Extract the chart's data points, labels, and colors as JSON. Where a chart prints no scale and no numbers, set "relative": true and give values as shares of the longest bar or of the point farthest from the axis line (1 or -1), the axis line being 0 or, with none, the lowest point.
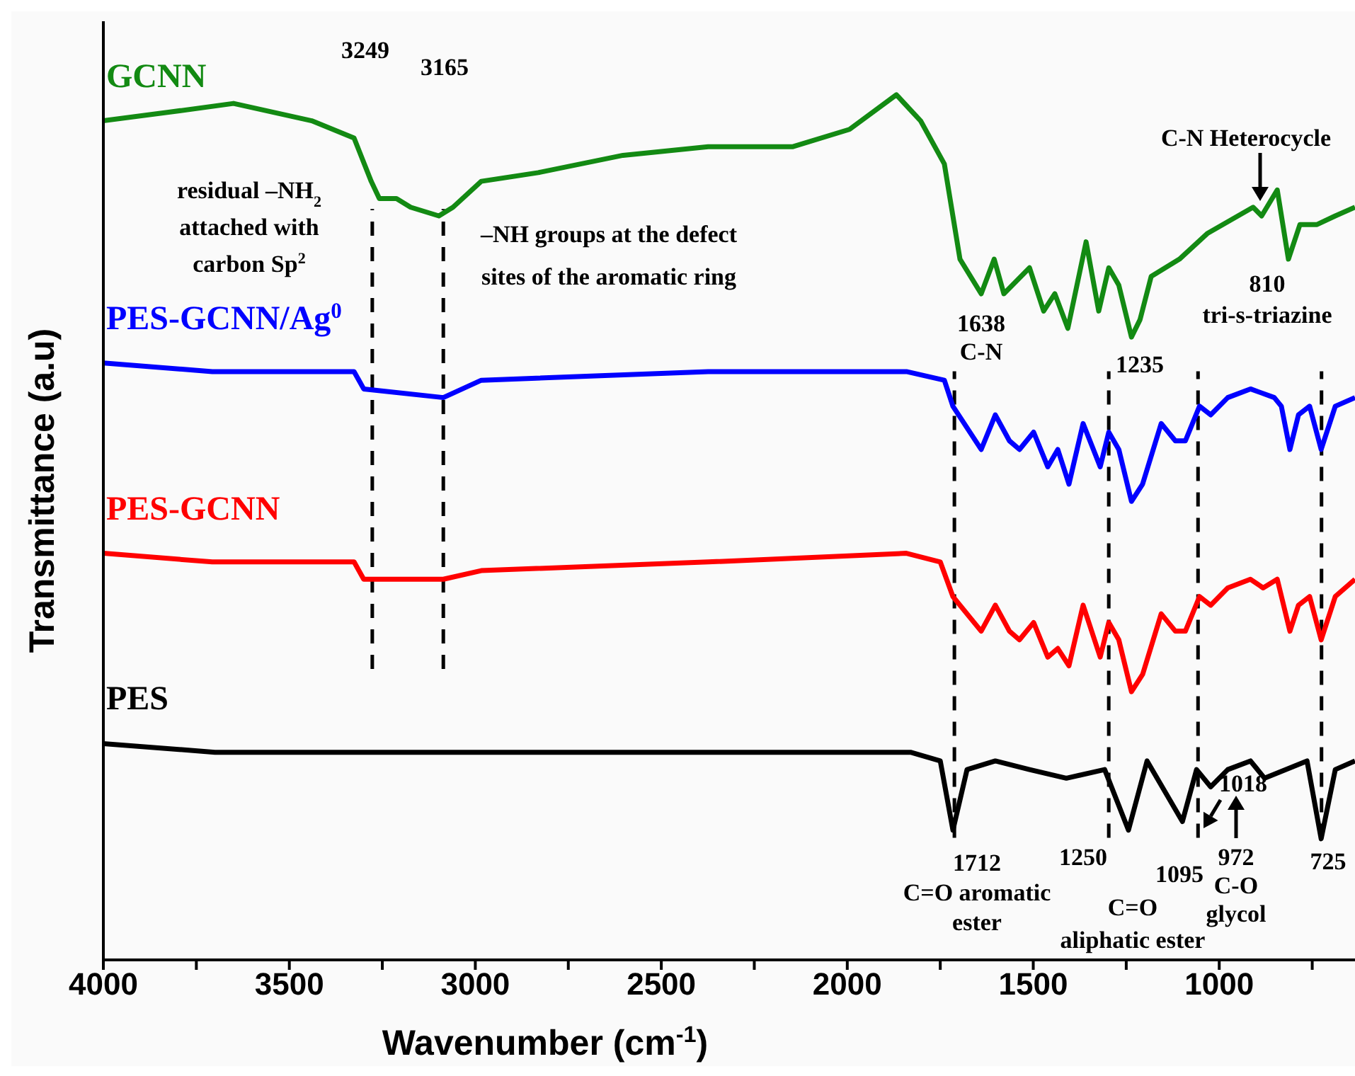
{
  "chart_data": {
    "type": "line",
    "relative": true,
    "xlabel": "Wavenumber (cm$^{-1}$)",
    "ylabel": "Transmittance (a.u)",
    "xlim": [
      4000,
      635
    ],
    "xticks": [
      4000,
      {
        "value": 3750,
        "label": null
      },
      3500,
      {
        "value": 3250,
        "label": null
      },
      3000,
      {
        "value": 2750,
        "label": null
      },
      2500,
      {
        "value": 2250,
        "label": null
      },
      2000,
      {
        "value": 1750,
        "label": null
      },
      1500,
      {
        "value": 1250,
        "label": null
      },
      1000,
      {
        "value": 750,
        "label": null
      }
    ],
    "grid": false,
    "marker": "none",
    "line_style": "solid",
    "series": [
      {
        "name": "GCNN",
        "color": "#138a13",
        "x": [
          4000,
          3821,
          3650,
          3440,
          3326,
          3280,
          3258,
          3212,
          3174,
          3098,
          3060,
          2984,
          2831,
          2603,
          2374,
          2146,
          1994,
          1868,
          1803,
          1739,
          1697,
          1640,
          1605,
          1579,
          1556,
          1510,
          1472,
          1442,
          1407,
          1358,
          1324,
          1297,
          1270,
          1236,
          1213,
          1183,
          1107,
          1031,
          909,
          886,
          844,
          814,
          783,
          737,
          688,
          635
        ],
        "values": [
          0.97,
          0.98,
          0.99,
          0.97,
          0.95,
          0.9,
          0.88,
          0.88,
          0.87,
          0.86,
          0.87,
          0.9,
          0.91,
          0.93,
          0.94,
          0.94,
          0.96,
          1,
          0.97,
          0.92,
          0.81,
          0.77,
          0.81,
          0.77,
          0.78,
          0.8,
          0.75,
          0.77,
          0.73,
          0.83,
          0.75,
          0.8,
          0.78,
          0.72,
          0.74,
          0.79,
          0.81,
          0.84,
          0.87,
          0.86,
          0.89,
          0.81,
          0.85,
          0.85,
          0.86,
          0.87
        ]
      },
      {
        "name": "PES-GCNN/Ag$^{0}$",
        "color": "#0000ff",
        "x": [
          4000,
          3707,
          3326,
          3300,
          3086,
          2984,
          2374,
          1841,
          1739,
          1716,
          1640,
          1602,
          1564,
          1537,
          1499,
          1461,
          1434,
          1404,
          1366,
          1320,
          1297,
          1270,
          1236,
          1206,
          1156,
          1118,
          1091,
          1053,
          1023,
          977,
          916,
          852,
          833,
          810,
          787,
          757,
          726,
          688,
          635
        ],
        "values": [
          0.69,
          0.68,
          0.68,
          0.66,
          0.65,
          0.67,
          0.68,
          0.68,
          0.67,
          0.64,
          0.59,
          0.63,
          0.6,
          0.59,
          0.61,
          0.57,
          0.59,
          0.55,
          0.62,
          0.57,
          0.61,
          0.59,
          0.53,
          0.55,
          0.62,
          0.6,
          0.6,
          0.64,
          0.63,
          0.65,
          0.66,
          0.65,
          0.64,
          0.59,
          0.63,
          0.64,
          0.59,
          0.64,
          0.65
        ]
      },
      {
        "name": "PES-GCNN",
        "color": "#ff0000",
        "x": [
          4000,
          3707,
          3326,
          3300,
          3086,
          2984,
          2374,
          1841,
          1750,
          1716,
          1640,
          1602,
          1564,
          1537,
          1499,
          1461,
          1434,
          1404,
          1366,
          1320,
          1297,
          1270,
          1236,
          1206,
          1156,
          1118,
          1091,
          1053,
          1023,
          977,
          916,
          882,
          844,
          810,
          787,
          757,
          726,
          688,
          635
        ],
        "values": [
          0.47,
          0.46,
          0.46,
          0.44,
          0.44,
          0.45,
          0.46,
          0.47,
          0.46,
          0.42,
          0.38,
          0.41,
          0.38,
          0.37,
          0.39,
          0.35,
          0.36,
          0.34,
          0.41,
          0.35,
          0.39,
          0.37,
          0.31,
          0.33,
          0.4,
          0.38,
          0.38,
          0.42,
          0.41,
          0.43,
          0.44,
          0.43,
          0.44,
          0.38,
          0.41,
          0.42,
          0.37,
          0.42,
          0.44
        ]
      },
      {
        "name": "PES",
        "color": "#000000",
        "x": [
          4000,
          3700,
          3500,
          3000,
          2500,
          2000,
          1830,
          1750,
          1716,
          1678,
          1602,
          1510,
          1411,
          1308,
          1244,
          1194,
          1099,
          1061,
          1023,
          977,
          916,
          878,
          764,
          726,
          688,
          635
        ],
        "values": [
          0.25,
          0.24,
          0.24,
          0.24,
          0.24,
          0.24,
          0.24,
          0.23,
          0.15,
          0.22,
          0.23,
          0.22,
          0.21,
          0.22,
          0.15,
          0.23,
          0.16,
          0.22,
          0.2,
          0.22,
          0.23,
          0.21,
          0.23,
          0.14,
          0.22,
          0.23
        ]
      }
    ],
    "ref_lines": [
      {
        "axis": "x",
        "value": 3277,
        "line_style": "dashed",
        "color": "#000000"
      },
      {
        "axis": "x",
        "value": 3086,
        "line_style": "dashed",
        "color": "#000000"
      },
      {
        "axis": "x",
        "value": 1712,
        "line_style": "dashed",
        "color": "#000000"
      },
      {
        "axis": "x",
        "value": 1297,
        "line_style": "dashed",
        "color": "#000000"
      },
      {
        "axis": "x",
        "value": 1057,
        "line_style": "dashed",
        "color": "#000000"
      },
      {
        "axis": "x",
        "value": 725,
        "line_style": "dashed",
        "color": "#000000"
      }
    ],
    "annotations": [
      "3249",
      "3165",
      "residual –NH$_{2}$\nattached with\ncarbon Sp$^{2}$",
      "–NH groups at the defect\nsites  of the aromatic ring",
      "C-N Heterocycle",
      "810\ntri-s-triazine",
      "1638\nC-N",
      "1235",
      "1712\nC=O aromatic\nester",
      "1250",
      "1095",
      "C=O\naliphatic ester",
      "972\nC-O\nglycol",
      "1018",
      "725"
    ]
  }
}
